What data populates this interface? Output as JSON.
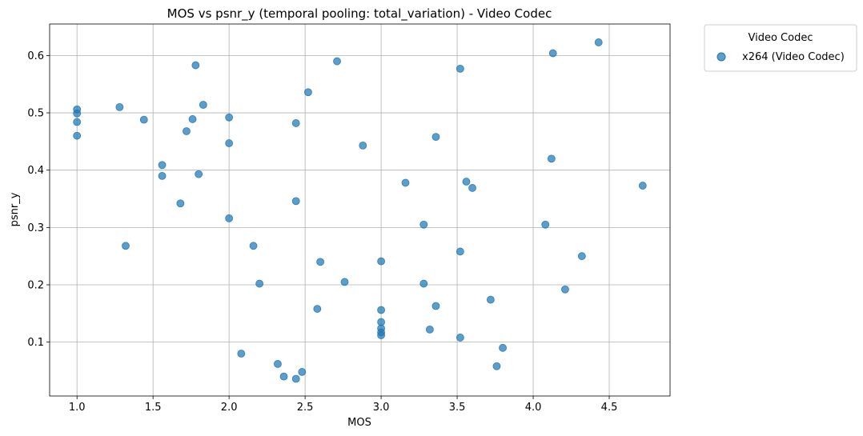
{
  "chart_data": {
    "type": "scatter",
    "title": "MOS vs psnr_y (temporal pooling: total_variation) - Video Codec",
    "xlabel": "MOS",
    "ylabel": "psnr_y",
    "xlim": [
      0.82,
      4.9
    ],
    "ylim": [
      0.006,
      0.655
    ],
    "xticks": [
      "1.0",
      "1.5",
      "2.0",
      "2.5",
      "3.0",
      "3.5",
      "4.0",
      "4.5"
    ],
    "yticks": [
      "0.1",
      "0.2",
      "0.3",
      "0.4",
      "0.5",
      "0.6"
    ],
    "grid": true,
    "legend": {
      "title": "Video Codec",
      "placement": "outside-top-right"
    },
    "colors": {
      "series": "#1f77b4"
    },
    "series": [
      {
        "name": "x264 (Video Codec)",
        "points": [
          [
            1.0,
            0.506
          ],
          [
            1.0,
            0.499
          ],
          [
            1.0,
            0.484
          ],
          [
            1.0,
            0.46
          ],
          [
            1.28,
            0.51
          ],
          [
            1.32,
            0.268
          ],
          [
            1.44,
            0.488
          ],
          [
            1.56,
            0.409
          ],
          [
            1.56,
            0.39
          ],
          [
            1.68,
            0.342
          ],
          [
            1.72,
            0.468
          ],
          [
            1.76,
            0.489
          ],
          [
            1.78,
            0.583
          ],
          [
            1.8,
            0.393
          ],
          [
            1.83,
            0.514
          ],
          [
            2.0,
            0.492
          ],
          [
            2.0,
            0.447
          ],
          [
            2.0,
            0.316
          ],
          [
            2.08,
            0.08
          ],
          [
            2.16,
            0.268
          ],
          [
            2.2,
            0.202
          ],
          [
            2.32,
            0.062
          ],
          [
            2.36,
            0.04
          ],
          [
            2.44,
            0.036
          ],
          [
            2.44,
            0.482
          ],
          [
            2.44,
            0.346
          ],
          [
            2.48,
            0.048
          ],
          [
            2.52,
            0.536
          ],
          [
            2.58,
            0.158
          ],
          [
            2.6,
            0.24
          ],
          [
            2.71,
            0.59
          ],
          [
            2.76,
            0.205
          ],
          [
            2.88,
            0.443
          ],
          [
            3.0,
            0.241
          ],
          [
            3.0,
            0.156
          ],
          [
            3.0,
            0.135
          ],
          [
            3.0,
            0.124
          ],
          [
            3.0,
            0.117
          ],
          [
            3.0,
            0.112
          ],
          [
            3.16,
            0.378
          ],
          [
            3.28,
            0.305
          ],
          [
            3.28,
            0.202
          ],
          [
            3.32,
            0.122
          ],
          [
            3.36,
            0.458
          ],
          [
            3.36,
            0.163
          ],
          [
            3.52,
            0.577
          ],
          [
            3.52,
            0.258
          ],
          [
            3.52,
            0.108
          ],
          [
            3.56,
            0.38
          ],
          [
            3.6,
            0.369
          ],
          [
            3.72,
            0.174
          ],
          [
            3.76,
            0.058
          ],
          [
            3.8,
            0.09
          ],
          [
            4.08,
            0.305
          ],
          [
            4.12,
            0.42
          ],
          [
            4.13,
            0.604
          ],
          [
            4.21,
            0.192
          ],
          [
            4.32,
            0.25
          ],
          [
            4.43,
            0.623
          ],
          [
            4.72,
            0.373
          ]
        ]
      }
    ]
  }
}
